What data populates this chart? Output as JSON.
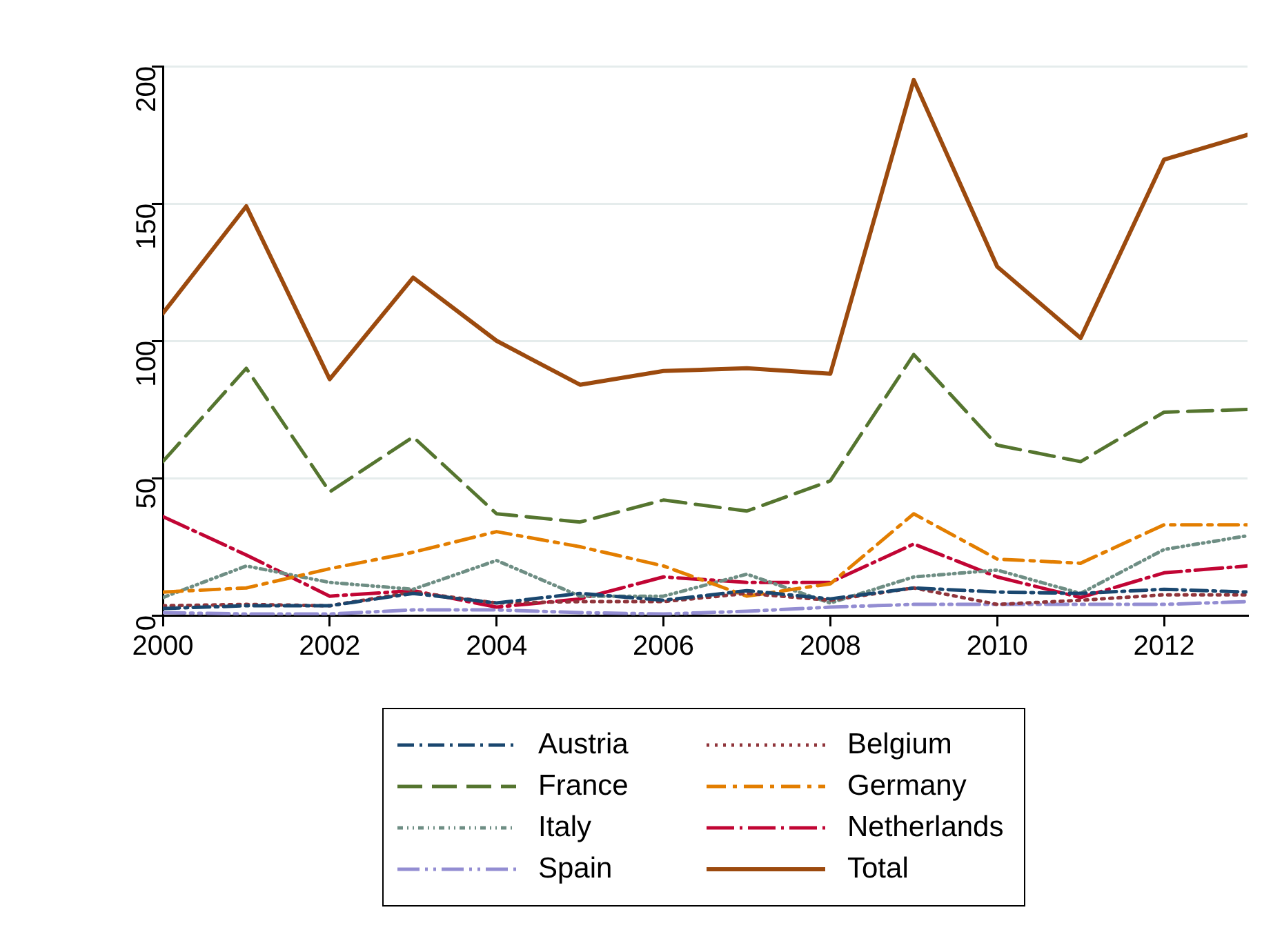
{
  "chart_data": {
    "type": "line",
    "x": [
      2000,
      2001,
      2002,
      2003,
      2004,
      2005,
      2006,
      2007,
      2008,
      2009,
      2010,
      2011,
      2012,
      2013
    ],
    "xlim": [
      2000,
      2013
    ],
    "xticks": [
      2000,
      2002,
      2004,
      2006,
      2008,
      2010,
      2012
    ],
    "ylim": [
      0,
      200
    ],
    "yticks": [
      0,
      50,
      100,
      150,
      200
    ],
    "grid": "y",
    "legend": "bottom",
    "marker": "none",
    "series": [
      {
        "name": "Austria",
        "color": "#1a476f",
        "line_style": "dashed",
        "values": [
          2.5,
          3.5,
          3.5,
          8,
          4.5,
          8,
          5.5,
          9,
          6,
          10,
          8.5,
          8,
          9.5,
          8.5
        ]
      },
      {
        "name": "Belgium",
        "color": "#90353b",
        "line_style": "dotted",
        "values": [
          3.5,
          4,
          3.5,
          8.5,
          4.5,
          5,
          5,
          8,
          5.5,
          10,
          4,
          5.5,
          7.5,
          7.5
        ]
      },
      {
        "name": "France",
        "color": "#55752f",
        "line_style": "dashed",
        "values": [
          56,
          90,
          45,
          65,
          37,
          34,
          42,
          38,
          49,
          95,
          62,
          56,
          74,
          75
        ]
      },
      {
        "name": "Germany",
        "color": "#e37e00",
        "line_style": "dashed",
        "values": [
          8.5,
          10,
          17,
          23,
          30.5,
          25,
          18,
          7,
          11.5,
          37,
          20.5,
          19,
          33,
          33
        ]
      },
      {
        "name": "Italy",
        "color": "#6e8e84",
        "line_style": "dashed",
        "values": [
          6.5,
          18,
          12,
          9.5,
          20,
          7,
          7,
          15,
          4.5,
          14,
          16.5,
          8,
          24,
          29
        ]
      },
      {
        "name": "Netherlands",
        "color": "#c10534",
        "line_style": "dashed",
        "values": [
          36,
          22,
          7,
          9,
          3,
          6,
          14,
          12,
          12,
          26,
          14,
          6.5,
          15.5,
          18
        ]
      },
      {
        "name": "Spain",
        "color": "#938dd2",
        "line_style": "dashed",
        "values": [
          1,
          0.5,
          0.5,
          2,
          2,
          1,
          0.5,
          1.5,
          3,
          4,
          4,
          4,
          4,
          5
        ]
      },
      {
        "name": "Total",
        "color": "#9c4a0e",
        "line_style": "solid",
        "values": [
          110,
          149,
          86,
          123,
          100,
          84,
          89,
          90,
          88,
          195,
          127,
          101,
          166,
          175
        ]
      }
    ]
  }
}
